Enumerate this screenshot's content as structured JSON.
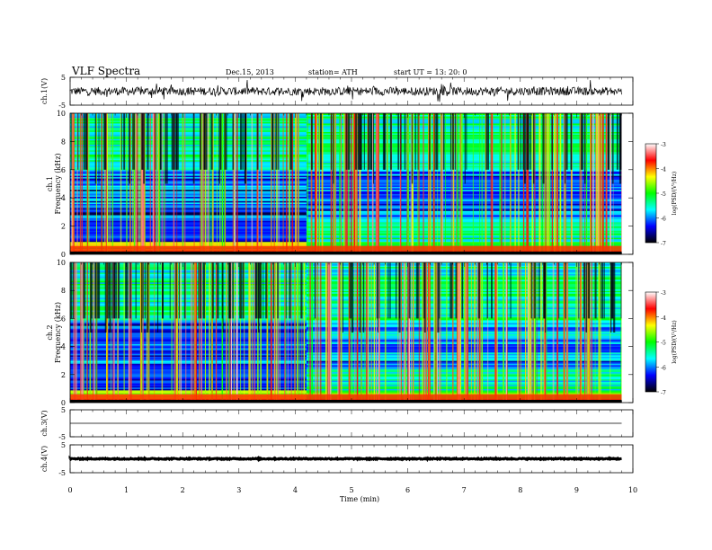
{
  "header": {
    "title": "VLF  Spectra",
    "date": "Dec.15, 2013",
    "station": "station= ATH",
    "start": "start  UT  =   13: 20: 0"
  },
  "colorbar": {
    "label": "log(PSD/(V²/Hz)",
    "ticks": [
      "-3",
      "-4",
      "-5",
      "-6",
      "-7"
    ],
    "colors": [
      "#ffffff",
      "#ff0000",
      "#ffff00",
      "#00ff00",
      "#00ffff",
      "#0000ff",
      "#000000"
    ]
  },
  "chart_data": [
    {
      "type": "line",
      "ylabel": "ch.1(V)",
      "ylim": [
        -5,
        5
      ],
      "yticks": [
        "5",
        "-5"
      ],
      "xlim": [
        0,
        10
      ],
      "description_values": {
        "baseline": 0.0,
        "noise_amplitude": 1.5
      }
    },
    {
      "type": "heatmap",
      "ylabel_channel": "ch.1",
      "ylabel": "Frequency  (kHz)",
      "ylim": [
        0,
        10
      ],
      "yticks": [
        "0",
        "2",
        "4",
        "6",
        "8",
        "10"
      ],
      "xlim": [
        0,
        9.8
      ],
      "transition_time_min": 4.2,
      "zlim": [
        -7,
        -3
      ]
    },
    {
      "type": "heatmap",
      "ylabel_channel": "ch.2",
      "ylabel": "Frequency  (kHz)",
      "ylim": [
        0,
        10
      ],
      "yticks": [
        "0",
        "2",
        "4",
        "6",
        "8",
        "10"
      ],
      "xlim": [
        0,
        9.8
      ],
      "transition_time_min": 4.2,
      "zlim": [
        -7,
        -3
      ]
    },
    {
      "type": "line",
      "ylabel": "ch.3(V)",
      "ylim": [
        -5,
        5
      ],
      "yticks": [
        "5",
        "-5"
      ],
      "xlim": [
        0,
        10
      ],
      "description_values": {
        "baseline": 0.0,
        "noise_amplitude": 0.0
      }
    },
    {
      "type": "line",
      "ylabel": "ch.4(V)",
      "ylim": [
        -5,
        5
      ],
      "yticks": [
        "5",
        "-5"
      ],
      "xlim": [
        0,
        10
      ],
      "description_values": {
        "baseline": 0.0,
        "noise_amplitude": 0.2
      }
    }
  ],
  "xaxis": {
    "label": "Time  (min)",
    "ticks": [
      "0",
      "1",
      "2",
      "3",
      "4",
      "5",
      "6",
      "7",
      "8",
      "9",
      "10"
    ]
  }
}
